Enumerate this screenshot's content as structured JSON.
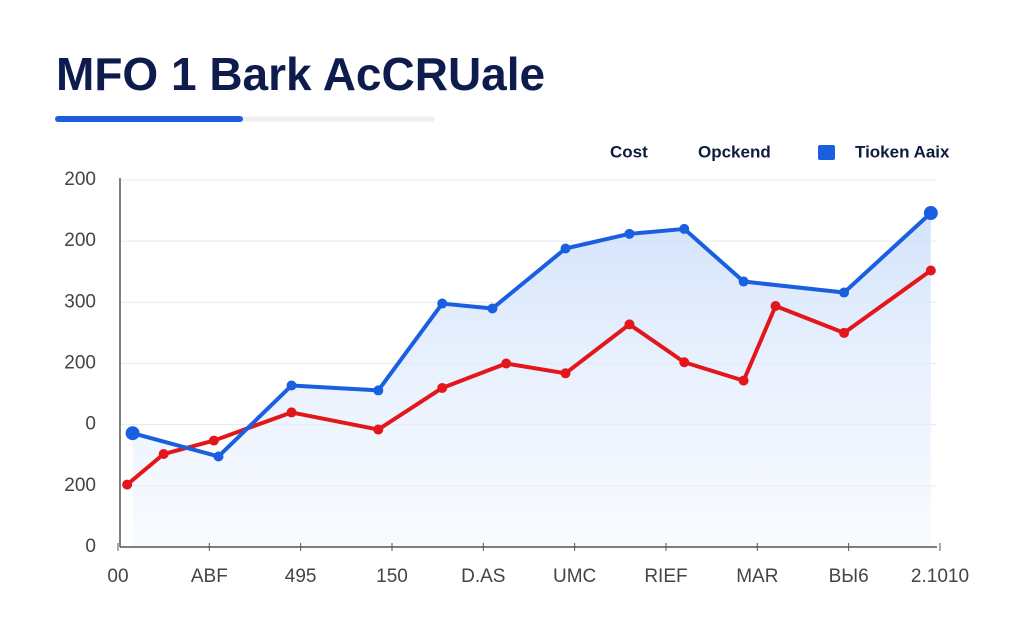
{
  "chart_data": {
    "type": "line",
    "title": "MFO 1 Bark AcCRUale",
    "legend_title": "Cost",
    "xlim": [
      0,
      9.2
    ],
    "xticks": [
      {
        "value": 0,
        "label": "00"
      },
      {
        "value": 1,
        "label": "ABF"
      },
      {
        "value": 2,
        "label": "495"
      },
      {
        "value": 3,
        "label": "150"
      },
      {
        "value": 4,
        "label": "D.AS"
      },
      {
        "value": 5,
        "label": "UMC"
      },
      {
        "value": 6,
        "label": "RIEF"
      },
      {
        "value": 7,
        "label": "MAR"
      },
      {
        "value": 8,
        "label": "BЫ6"
      },
      {
        "value": 9,
        "label": "2.1010"
      }
    ],
    "ylim": [
      0,
      300
    ],
    "yticks": [
      0,
      {
        "value": 50,
        "label": "200"
      },
      {
        "value": 100,
        "label": "0"
      },
      {
        "value": 150,
        "label": "200"
      },
      {
        "value": 200,
        "label": "300"
      },
      {
        "value": 250,
        "label": "200"
      },
      {
        "value": 300,
        "label": "200"
      }
    ],
    "grid": true,
    "series": [
      {
        "name": "Opckend",
        "color": "#e3161b",
        "x": [
          0.1,
          0.5,
          1.05,
          1.9,
          2.85,
          3.55,
          4.25,
          4.9,
          5.6,
          6.2,
          6.85,
          7.2,
          7.95,
          8.9
        ],
        "values": [
          51,
          76,
          87,
          110,
          96,
          130,
          150,
          142,
          182,
          151,
          136,
          197,
          175,
          226
        ]
      },
      {
        "name": "Tioken Aaix",
        "color": "#1a5fe0",
        "x": [
          0.16,
          1.1,
          1.9,
          2.85,
          3.55,
          4.1,
          4.9,
          5.6,
          6.2,
          6.85,
          7.95,
          8.9
        ],
        "values": [
          93,
          74,
          132,
          128,
          199,
          195,
          244,
          256,
          260,
          217,
          208,
          273
        ]
      }
    ]
  }
}
